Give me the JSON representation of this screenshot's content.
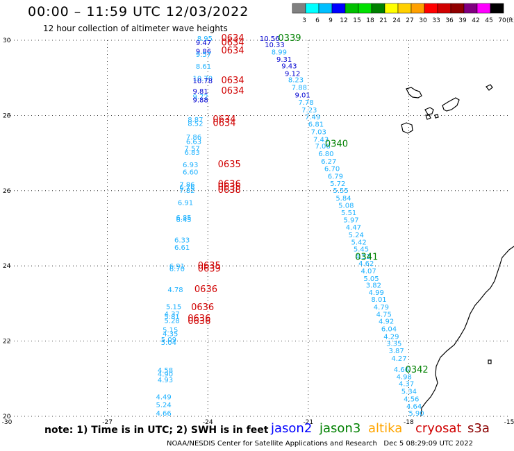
{
  "header": {
    "title": "00:00 – 11:59 UTC 12/03/2022",
    "subtitle": "12 hour collection of altimeter wave heights"
  },
  "colorbar": {
    "unit": "(ft)",
    "ticks": [
      "3",
      "6",
      "9",
      "12",
      "15",
      "18",
      "21",
      "24",
      "27",
      "30",
      "33",
      "36",
      "39",
      "42",
      "45",
      "70"
    ],
    "colors": [
      "#808080",
      "#00ffff",
      "#00bfff",
      "#0000ff",
      "#00c000",
      "#00e000",
      "#008000",
      "#ffff00",
      "#ffd000",
      "#ffa000",
      "#ff0000",
      "#d00000",
      "#900000",
      "#800080",
      "#ff00ff",
      "#000000"
    ]
  },
  "map": {
    "lon_ticks": [
      "-30",
      "-27",
      "-24",
      "-21",
      "-18",
      "-15"
    ],
    "lat_ticks": [
      "30",
      "28",
      "26",
      "24",
      "22",
      "20"
    ],
    "track_labels": [
      {
        "text": "0634",
        "lon": -23.6,
        "lat": 29.98,
        "color": "#d00000"
      },
      {
        "text": "0634",
        "lon": -23.6,
        "lat": 29.86,
        "color": "#d00000"
      },
      {
        "text": "0634",
        "lon": -23.6,
        "lat": 29.65,
        "color": "#d00000"
      },
      {
        "text": "0634",
        "lon": -23.6,
        "lat": 28.86,
        "color": "#d00000"
      },
      {
        "text": "0634",
        "lon": -23.6,
        "lat": 28.58,
        "color": "#d00000"
      },
      {
        "text": "0634",
        "lon": -23.85,
        "lat": 27.82,
        "color": "#d00000"
      },
      {
        "text": "0634",
        "lon": -23.85,
        "lat": 27.72,
        "color": "#d00000"
      },
      {
        "text": "0635",
        "lon": -23.7,
        "lat": 26.62,
        "color": "#d00000"
      },
      {
        "text": "0636",
        "lon": -23.7,
        "lat": 26.1,
        "color": "#d00000"
      },
      {
        "text": "0635",
        "lon": -23.7,
        "lat": 26.02,
        "color": "#d00000"
      },
      {
        "text": "0638",
        "lon": -23.7,
        "lat": 25.94,
        "color": "#d00000"
      },
      {
        "text": "0635",
        "lon": -24.3,
        "lat": 23.93,
        "color": "#d00000"
      },
      {
        "text": "0639",
        "lon": -24.3,
        "lat": 23.85,
        "color": "#d00000"
      },
      {
        "text": "0636",
        "lon": -24.4,
        "lat": 23.3,
        "color": "#d00000"
      },
      {
        "text": "0636",
        "lon": -24.5,
        "lat": 22.82,
        "color": "#d00000"
      },
      {
        "text": "0636",
        "lon": -24.6,
        "lat": 22.53,
        "color": "#d00000"
      },
      {
        "text": "0636",
        "lon": -24.6,
        "lat": 22.45,
        "color": "#d00000"
      },
      {
        "text": "0339",
        "lon": -21.9,
        "lat": 29.98,
        "color": "#008000"
      },
      {
        "text": "0340",
        "lon": -20.5,
        "lat": 27.17,
        "color": "#008000"
      },
      {
        "text": "0341",
        "lon": -19.6,
        "lat": 24.16,
        "color": "#008000"
      },
      {
        "text": "0342",
        "lon": -18.1,
        "lat": 21.16,
        "color": "#008000"
      }
    ],
    "wave_values": [
      {
        "text": "8.95",
        "lon": -24.32,
        "lat": 29.98,
        "color": "#1ab0ff"
      },
      {
        "text": "9.47",
        "lon": -24.36,
        "lat": 29.87,
        "color": "#0000d0"
      },
      {
        "text": "9.86",
        "lon": -24.36,
        "lat": 29.64,
        "color": "#0000d0"
      },
      {
        "text": "9.57",
        "lon": -24.36,
        "lat": 29.56,
        "color": "#1ab0ff"
      },
      {
        "text": "8.61",
        "lon": -24.36,
        "lat": 29.24,
        "color": "#1ab0ff"
      },
      {
        "text": "10.70",
        "lon": -24.45,
        "lat": 28.92,
        "color": "#1ab0ff"
      },
      {
        "text": "10.78",
        "lon": -24.45,
        "lat": 28.86,
        "color": "#0000d0"
      },
      {
        "text": "9.81",
        "lon": -24.45,
        "lat": 28.58,
        "color": "#0000d0"
      },
      {
        "text": "9.72",
        "lon": -24.45,
        "lat": 28.43,
        "color": "#1ab0ff"
      },
      {
        "text": "9.88",
        "lon": -24.45,
        "lat": 28.35,
        "color": "#0000d0"
      },
      {
        "text": "8.87",
        "lon": -24.6,
        "lat": 27.82,
        "color": "#1ab0ff"
      },
      {
        "text": "8.52",
        "lon": -24.6,
        "lat": 27.72,
        "color": "#1ab0ff"
      },
      {
        "text": "7.86",
        "lon": -24.65,
        "lat": 27.36,
        "color": "#1ab0ff"
      },
      {
        "text": "6.63",
        "lon": -24.65,
        "lat": 27.24,
        "color": "#1ab0ff"
      },
      {
        "text": "7.57",
        "lon": -24.7,
        "lat": 27.06,
        "color": "#1ab0ff"
      },
      {
        "text": "6.83",
        "lon": -24.7,
        "lat": 26.96,
        "color": "#1ab0ff"
      },
      {
        "text": "6.93",
        "lon": -24.75,
        "lat": 26.62,
        "color": "#1ab0ff"
      },
      {
        "text": "6.60",
        "lon": -24.75,
        "lat": 26.43,
        "color": "#1ab0ff"
      },
      {
        "text": "7.86",
        "lon": -24.85,
        "lat": 26.1,
        "color": "#1ab0ff"
      },
      {
        "text": "6.76",
        "lon": -24.85,
        "lat": 26.02,
        "color": "#1ab0ff"
      },
      {
        "text": "7.82",
        "lon": -24.85,
        "lat": 25.94,
        "color": "#1ab0ff"
      },
      {
        "text": "6.91",
        "lon": -24.9,
        "lat": 25.62,
        "color": "#1ab0ff"
      },
      {
        "text": "6.85",
        "lon": -24.95,
        "lat": 25.22,
        "color": "#1ab0ff"
      },
      {
        "text": "6.45",
        "lon": -24.95,
        "lat": 25.17,
        "color": "#1ab0ff"
      },
      {
        "text": "6.33",
        "lon": -25.0,
        "lat": 24.62,
        "color": "#1ab0ff"
      },
      {
        "text": "6.61",
        "lon": -25.0,
        "lat": 24.43,
        "color": "#1ab0ff"
      },
      {
        "text": "6.91",
        "lon": -25.15,
        "lat": 23.93,
        "color": "#1ab0ff"
      },
      {
        "text": "6.70",
        "lon": -25.15,
        "lat": 23.86,
        "color": "#1ab0ff"
      },
      {
        "text": "4.78",
        "lon": -25.2,
        "lat": 23.3,
        "color": "#1ab0ff"
      },
      {
        "text": "5.15",
        "lon": -25.25,
        "lat": 22.85,
        "color": "#1ab0ff"
      },
      {
        "text": "4.37",
        "lon": -25.3,
        "lat": 22.66,
        "color": "#1ab0ff"
      },
      {
        "text": "5.81",
        "lon": -25.3,
        "lat": 22.58,
        "color": "#1ab0ff"
      },
      {
        "text": "5.28",
        "lon": -25.3,
        "lat": 22.48,
        "color": "#1ab0ff"
      },
      {
        "text": "5.15",
        "lon": -25.35,
        "lat": 22.23,
        "color": "#1ab0ff"
      },
      {
        "text": "4.35",
        "lon": -25.35,
        "lat": 22.13,
        "color": "#1ab0ff"
      },
      {
        "text": "5.09",
        "lon": -25.4,
        "lat": 21.97,
        "color": "#1ab0ff"
      },
      {
        "text": "5.04",
        "lon": -25.4,
        "lat": 21.9,
        "color": "#1ab0ff"
      },
      {
        "text": "4.58",
        "lon": -25.5,
        "lat": 21.16,
        "color": "#1ab0ff"
      },
      {
        "text": "4.90",
        "lon": -25.5,
        "lat": 21.06,
        "color": "#1ab0ff"
      },
      {
        "text": "4.93",
        "lon": -25.5,
        "lat": 20.9,
        "color": "#1ab0ff"
      },
      {
        "text": "4.49",
        "lon": -25.55,
        "lat": 20.45,
        "color": "#1ab0ff"
      },
      {
        "text": "5.24",
        "lon": -25.55,
        "lat": 20.24,
        "color": "#1ab0ff"
      },
      {
        "text": "4.66",
        "lon": -25.55,
        "lat": 20.02,
        "color": "#1ab0ff"
      },
      {
        "text": "10.56",
        "lon": -22.45,
        "lat": 29.98,
        "color": "#0000d0"
      },
      {
        "text": "10.33",
        "lon": -22.3,
        "lat": 29.82,
        "color": "#0000d0"
      },
      {
        "text": "8.99",
        "lon": -22.1,
        "lat": 29.62,
        "color": "#1ab0ff"
      },
      {
        "text": "9.31",
        "lon": -21.95,
        "lat": 29.43,
        "color": "#0000d0"
      },
      {
        "text": "9.43",
        "lon": -21.8,
        "lat": 29.25,
        "color": "#0000d0"
      },
      {
        "text": "9.12",
        "lon": -21.7,
        "lat": 29.05,
        "color": "#0000d0"
      },
      {
        "text": "8.23",
        "lon": -21.6,
        "lat": 28.88,
        "color": "#1ab0ff"
      },
      {
        "text": "7.88",
        "lon": -21.5,
        "lat": 28.68,
        "color": "#1ab0ff"
      },
      {
        "text": "9.01",
        "lon": -21.4,
        "lat": 28.48,
        "color": "#0000d0"
      },
      {
        "text": "7.78",
        "lon": -21.3,
        "lat": 28.28,
        "color": "#1ab0ff"
      },
      {
        "text": "7.23",
        "lon": -21.2,
        "lat": 28.08,
        "color": "#1ab0ff"
      },
      {
        "text": "7.49",
        "lon": -21.1,
        "lat": 27.9,
        "color": "#1ab0ff"
      },
      {
        "text": "6.81",
        "lon": -21.0,
        "lat": 27.7,
        "color": "#1ab0ff"
      },
      {
        "text": "7.03",
        "lon": -20.92,
        "lat": 27.5,
        "color": "#1ab0ff"
      },
      {
        "text": "7.43",
        "lon": -20.85,
        "lat": 27.3,
        "color": "#1ab0ff"
      },
      {
        "text": "7.06",
        "lon": -20.8,
        "lat": 27.12,
        "color": "#1ab0ff"
      },
      {
        "text": "6.80",
        "lon": -20.7,
        "lat": 26.92,
        "color": "#1ab0ff"
      },
      {
        "text": "6.27",
        "lon": -20.62,
        "lat": 26.72,
        "color": "#1ab0ff"
      },
      {
        "text": "6.70",
        "lon": -20.52,
        "lat": 26.52,
        "color": "#1ab0ff"
      },
      {
        "text": "6.79",
        "lon": -20.42,
        "lat": 26.32,
        "color": "#1ab0ff"
      },
      {
        "text": "5.72",
        "lon": -20.35,
        "lat": 26.13,
        "color": "#1ab0ff"
      },
      {
        "text": "5.55",
        "lon": -20.26,
        "lat": 25.94,
        "color": "#1ab0ff"
      },
      {
        "text": "5.84",
        "lon": -20.18,
        "lat": 25.74,
        "color": "#1ab0ff"
      },
      {
        "text": "5.08",
        "lon": -20.1,
        "lat": 25.54,
        "color": "#1ab0ff"
      },
      {
        "text": "5.51",
        "lon": -20.02,
        "lat": 25.35,
        "color": "#1ab0ff"
      },
      {
        "text": "5.97",
        "lon": -19.95,
        "lat": 25.16,
        "color": "#1ab0ff"
      },
      {
        "text": "4.47",
        "lon": -19.88,
        "lat": 24.96,
        "color": "#1ab0ff"
      },
      {
        "text": "5.24",
        "lon": -19.8,
        "lat": 24.76,
        "color": "#1ab0ff"
      },
      {
        "text": "5.42",
        "lon": -19.72,
        "lat": 24.57,
        "color": "#1ab0ff"
      },
      {
        "text": "5.45",
        "lon": -19.65,
        "lat": 24.38,
        "color": "#1ab0ff"
      },
      {
        "text": "4.53",
        "lon": -19.6,
        "lat": 24.19,
        "color": "#1ab0ff"
      },
      {
        "text": "4.62",
        "lon": -19.5,
        "lat": 24.0,
        "color": "#1ab0ff"
      },
      {
        "text": "4.07",
        "lon": -19.43,
        "lat": 23.8,
        "color": "#1ab0ff"
      },
      {
        "text": "5.05",
        "lon": -19.35,
        "lat": 23.6,
        "color": "#1ab0ff"
      },
      {
        "text": "3.82",
        "lon": -19.28,
        "lat": 23.42,
        "color": "#1ab0ff"
      },
      {
        "text": "4.99",
        "lon": -19.2,
        "lat": 23.23,
        "color": "#1ab0ff"
      },
      {
        "text": "8.01",
        "lon": -19.12,
        "lat": 23.04,
        "color": "#1ab0ff"
      },
      {
        "text": "4.79",
        "lon": -19.05,
        "lat": 22.84,
        "color": "#1ab0ff"
      },
      {
        "text": "4.75",
        "lon": -18.97,
        "lat": 22.65,
        "color": "#1ab0ff"
      },
      {
        "text": "4.92",
        "lon": -18.9,
        "lat": 22.46,
        "color": "#1ab0ff"
      },
      {
        "text": "6.04",
        "lon": -18.82,
        "lat": 22.26,
        "color": "#1ab0ff"
      },
      {
        "text": "4.29",
        "lon": -18.75,
        "lat": 22.06,
        "color": "#1ab0ff"
      },
      {
        "text": "3.35",
        "lon": -18.67,
        "lat": 21.87,
        "color": "#1ab0ff"
      },
      {
        "text": "3.87",
        "lon": -18.6,
        "lat": 21.68,
        "color": "#1ab0ff"
      },
      {
        "text": "4.27",
        "lon": -18.52,
        "lat": 21.48,
        "color": "#1ab0ff"
      },
      {
        "text": "4.66",
        "lon": -18.45,
        "lat": 21.18,
        "color": "#1ab0ff"
      },
      {
        "text": "4.98",
        "lon": -18.37,
        "lat": 20.99,
        "color": "#1ab0ff"
      },
      {
        "text": "4.37",
        "lon": -18.3,
        "lat": 20.8,
        "color": "#1ab0ff"
      },
      {
        "text": "5.34",
        "lon": -18.22,
        "lat": 20.6,
        "color": "#1ab0ff"
      },
      {
        "text": "4.56",
        "lon": -18.15,
        "lat": 20.4,
        "color": "#1ab0ff"
      },
      {
        "text": "4.64",
        "lon": -18.07,
        "lat": 20.2,
        "color": "#1ab0ff"
      },
      {
        "text": "5.90",
        "lon": -18.0,
        "lat": 20.02,
        "color": "#1ab0ff"
      }
    ]
  },
  "legend": {
    "note": "note: 1) Time is in UTC; 2) SWH is in feet",
    "satellites": [
      {
        "name": "jason2",
        "color": "#0000ff"
      },
      {
        "name": "jason3",
        "color": "#008000"
      },
      {
        "name": "altika",
        "color": "#ffa500"
      },
      {
        "name": "cryosat",
        "color": "#d00000"
      },
      {
        "name": "s3a",
        "color": "#8b0000"
      }
    ]
  },
  "footer": {
    "credit": "NOAA/NESDIS Center for Satellite Applications and Research",
    "timestamp": "Dec  5 08:29:09 UTC 2022"
  }
}
